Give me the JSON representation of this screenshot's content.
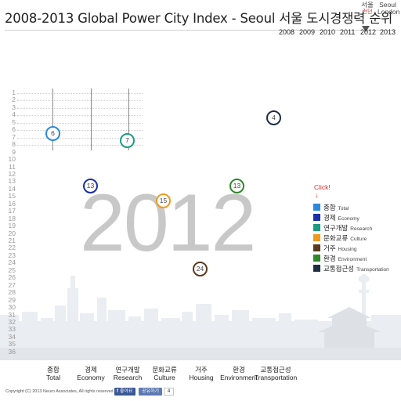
{
  "title": "2008-2013 Global Power City Index - Seoul 서울 도시경쟁력 순위",
  "lang_switch": {
    "seoul_line1": "서울",
    "seoul_line2": "런던",
    "london_line1": "Seoul",
    "london_line2": "London"
  },
  "years": [
    "2008",
    "2009",
    "2010",
    "2011",
    "2012",
    "2013"
  ],
  "selected_year": "2012",
  "ranks": [
    "1",
    "2",
    "3",
    "4",
    "5",
    "6",
    "7",
    "8",
    "9",
    "10",
    "11",
    "12",
    "13",
    "14",
    "15",
    "16",
    "17",
    "18",
    "19",
    "20",
    "21",
    "22",
    "23",
    "24",
    "25",
    "26",
    "27",
    "28",
    "29",
    "30",
    "31",
    "32",
    "33",
    "34",
    "35",
    "36"
  ],
  "markers": [
    {
      "label": "6",
      "color": "#2a8ad8"
    },
    {
      "label": "7",
      "color": "#1c9c80"
    },
    {
      "label": "4",
      "color": "#1d2e44"
    },
    {
      "label": "13",
      "color": "#1a2fa8"
    },
    {
      "label": "13",
      "color": "#2e8a2a"
    },
    {
      "label": "15",
      "color": "#f09a1c"
    },
    {
      "label": "24",
      "color": "#5a3a1e"
    }
  ],
  "click_hint": "Click!",
  "click_arrow": "↓",
  "legend": [
    {
      "ko": "종합",
      "en": "Total",
      "color": "#2a8ad8"
    },
    {
      "ko": "경제",
      "en": "Economy",
      "color": "#1a2fa8"
    },
    {
      "ko": "연구개발",
      "en": "Research",
      "color": "#1c9c80"
    },
    {
      "ko": "문화교류",
      "en": "Culture",
      "color": "#f09a1c"
    },
    {
      "ko": "거주",
      "en": "Housing",
      "color": "#5a3a1e"
    },
    {
      "ko": "환경",
      "en": "Environment",
      "color": "#2e8a2a"
    },
    {
      "ko": "교통접근성",
      "en": "Transportation",
      "color": "#1d2e44"
    }
  ],
  "categories": [
    {
      "ko": "종합",
      "en": "Total"
    },
    {
      "ko": "경제",
      "en": "Economy"
    },
    {
      "ko": "연구개발",
      "en": "Research"
    },
    {
      "ko": "문화교류",
      "en": "Culture"
    },
    {
      "ko": "거주",
      "en": "Housing"
    },
    {
      "ko": "환경",
      "en": "Environment"
    },
    {
      "ko": "교통접근성",
      "en": "Transportation"
    }
  ],
  "footer": {
    "copyright": "Copyright (C) 2013 Neuro Associates, All rights reserved.",
    "like_label": "좋아요",
    "share_label": "공유하기",
    "share_count": "4"
  }
}
